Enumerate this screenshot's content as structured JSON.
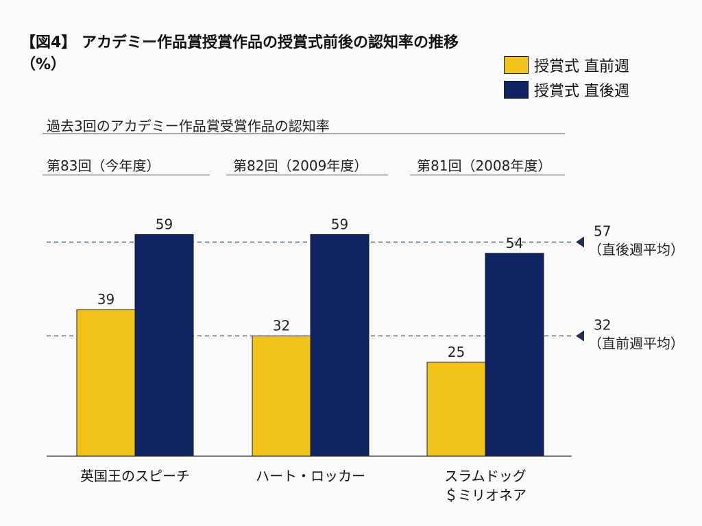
{
  "header": {
    "title": "【図4】 アカデミー作品賞授賞作品の授賞式前後の認知率の推移",
    "unit": "（%）"
  },
  "legend": [
    {
      "label": "授賞式  直前週",
      "color": "#f2c318"
    },
    {
      "label": "授賞式  直後週",
      "color": "#0f2360"
    }
  ],
  "subtitle": "過去3回のアカデミー作品賞受賞作品の認知率",
  "editions": [
    "第83回（今年度）",
    "第82回（2009年度）",
    "第81回（2008年度）"
  ],
  "chart_data": {
    "type": "bar",
    "categories": [
      [
        "英国王のスピーチ"
      ],
      [
        "ハート・ロッカー"
      ],
      [
        "スラムドッグ",
        "＄ミリオネア"
      ]
    ],
    "series": [
      {
        "name": "授賞式  直前週",
        "values": [
          39,
          32,
          25
        ],
        "color": "#f2c318"
      },
      {
        "name": "授賞式  直後週",
        "values": [
          59,
          59,
          54
        ],
        "color": "#0f2360"
      }
    ],
    "ylim": [
      0,
      66
    ],
    "reference_lines": [
      {
        "value": 57,
        "label_value": "57",
        "label_text": "（直後週平均）"
      },
      {
        "value": 32,
        "label_value": "32",
        "label_text": "（直前週平均）"
      }
    ]
  }
}
